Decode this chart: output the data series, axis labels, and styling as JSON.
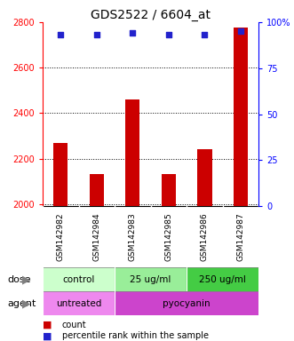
{
  "title": "GDS2522 / 6604_at",
  "samples": [
    "GSM142982",
    "GSM142984",
    "GSM142983",
    "GSM142985",
    "GSM142986",
    "GSM142987"
  ],
  "counts": [
    2270,
    2130,
    2460,
    2130,
    2240,
    2775
  ],
  "percentile_ranks": [
    93,
    93,
    94,
    93,
    93,
    95
  ],
  "ylim_left": [
    1990,
    2800
  ],
  "ylim_right": [
    0,
    100
  ],
  "yticks_left": [
    2000,
    2200,
    2400,
    2600,
    2800
  ],
  "yticks_right": [
    0,
    25,
    50,
    75,
    100
  ],
  "bar_color": "#cc0000",
  "dot_color": "#2222cc",
  "bg_color_xlabels": "#cccccc",
  "dose_labels": [
    {
      "text": "control",
      "span": [
        0,
        2
      ],
      "color": "#ccffcc"
    },
    {
      "text": "25 ug/ml",
      "span": [
        2,
        4
      ],
      "color": "#99ee99"
    },
    {
      "text": "250 ug/ml",
      "span": [
        4,
        6
      ],
      "color": "#44cc44"
    }
  ],
  "agent_labels": [
    {
      "text": "untreated",
      "span": [
        0,
        2
      ],
      "color": "#ee88ee"
    },
    {
      "text": "pyocyanin",
      "span": [
        2,
        6
      ],
      "color": "#cc44cc"
    }
  ],
  "dose_row_label": "dose",
  "agent_row_label": "agent",
  "legend_count_color": "#cc0000",
  "legend_dot_color": "#2222cc",
  "legend_count_text": "count",
  "legend_dot_text": "percentile rank within the sample",
  "title_fontsize": 10,
  "tick_fontsize": 7,
  "label_fontsize": 8,
  "sample_fontsize": 6.5,
  "row_label_fontsize": 8,
  "legend_fontsize": 7
}
